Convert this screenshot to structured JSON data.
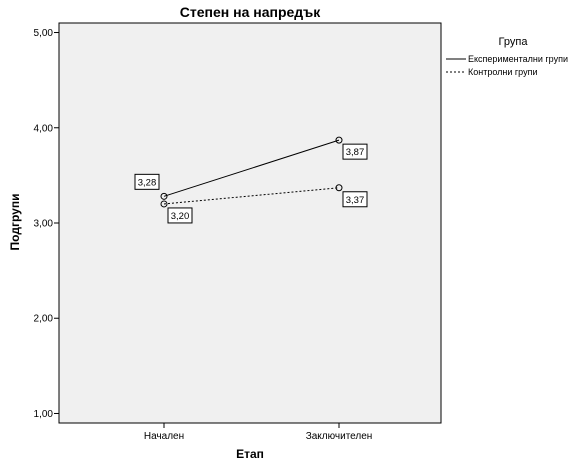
{
  "chart_data": {
    "type": "line",
    "title": "Степен на напредък",
    "xlabel": "Етап",
    "ylabel": "Подгрупи",
    "categories": [
      "Начален",
      "Заключителен"
    ],
    "ylim": [
      0.9,
      5.1
    ],
    "yticks": [
      1.0,
      2.0,
      3.0,
      4.0,
      5.0
    ],
    "ytick_labels": [
      "1,00",
      "2,00",
      "3,00",
      "4,00",
      "5,00"
    ],
    "grid": false,
    "plot_background": "#f0f0f0",
    "legend": {
      "title": "Група",
      "placement": "top-right outside"
    },
    "series": [
      {
        "name": "Експериментални групи",
        "values": [
          3.28,
          3.87
        ],
        "value_labels": [
          "3,28",
          "3,87"
        ],
        "line_style": "solid",
        "color": "#000000"
      },
      {
        "name": "Контролни групи",
        "values": [
          3.2,
          3.37
        ],
        "value_labels": [
          "3,20",
          "3,37"
        ],
        "line_style": "dashed",
        "color": "#000000"
      }
    ]
  }
}
